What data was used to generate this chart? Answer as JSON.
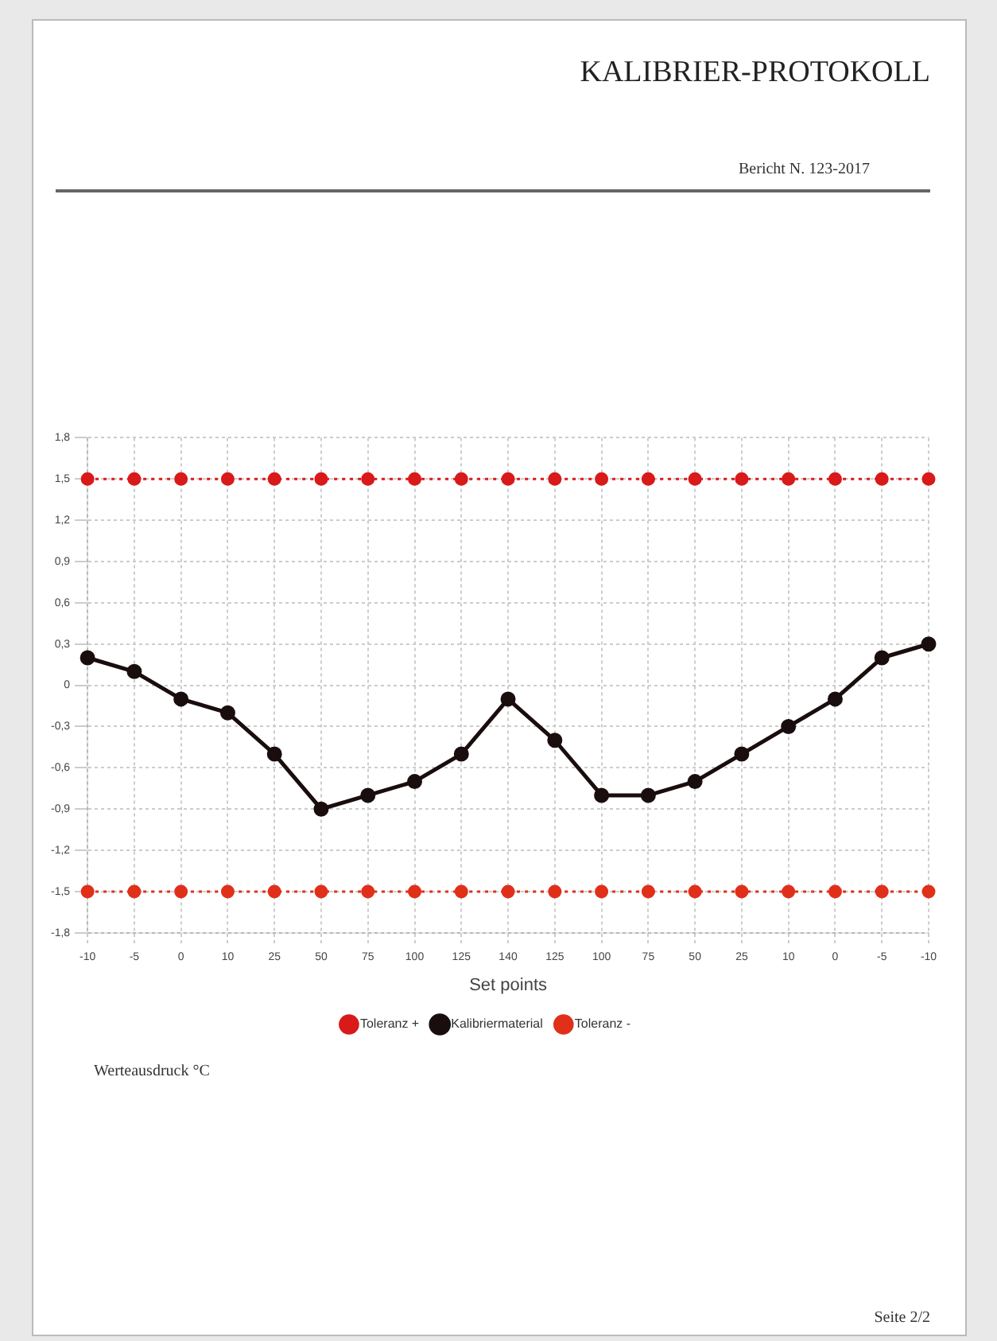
{
  "chart_data": {
    "type": "line",
    "title": "KALIBRIER-PROTOKOLL",
    "xlabel": "Set points",
    "annotations": [
      "Bericht N. 123-2017",
      "Werteausdruck °C",
      "Seite 2/2"
    ],
    "categories": [
      "-10",
      "-5",
      "0",
      "10",
      "25",
      "50",
      "75",
      "100",
      "125",
      "140",
      "125",
      "100",
      "75",
      "50",
      "25",
      "10",
      "0",
      "-5",
      "-10"
    ],
    "series": [
      {
        "name": "Toleranz +",
        "color": "#d91a1a",
        "line_style": "dotted",
        "values": [
          1.5,
          1.5,
          1.5,
          1.5,
          1.5,
          1.5,
          1.5,
          1.5,
          1.5,
          1.5,
          1.5,
          1.5,
          1.5,
          1.5,
          1.5,
          1.5,
          1.5,
          1.5,
          1.5
        ]
      },
      {
        "name": "Kalibriermaterial",
        "color": "#1a0d0d",
        "line_style": "solid",
        "values": [
          0.2,
          0.1,
          -0.1,
          -0.2,
          -0.5,
          -0.9,
          -0.8,
          -0.7,
          -0.5,
          -0.1,
          -0.4,
          -0.8,
          -0.8,
          -0.7,
          -0.5,
          -0.3,
          -0.1,
          0.2,
          0.3
        ]
      },
      {
        "name": "Toleranz -",
        "color": "#e0301a",
        "line_style": "dotted",
        "values": [
          -1.5,
          -1.5,
          -1.5,
          -1.5,
          -1.5,
          -1.5,
          -1.5,
          -1.5,
          -1.5,
          -1.5,
          -1.5,
          -1.5,
          -1.5,
          -1.5,
          -1.5,
          -1.5,
          -1.5,
          -1.5,
          -1.5
        ]
      }
    ],
    "ylim": [
      -1.8,
      1.8
    ],
    "yticks": [
      {
        "value": -1.8,
        "label": "-1,8"
      },
      {
        "value": -1.5,
        "label": "-1,5"
      },
      {
        "value": -1.2,
        "label": "-1,2"
      },
      {
        "value": -0.9,
        "label": "-0,9"
      },
      {
        "value": -0.6,
        "label": "-0,6"
      },
      {
        "value": -0.3,
        "label": "-0,3"
      },
      0,
      {
        "value": 0.3,
        "label": "0,3"
      },
      {
        "value": 0.6,
        "label": "0,6"
      },
      {
        "value": 0.9,
        "label": "0,9"
      },
      {
        "value": 1.2,
        "label": "1,2"
      },
      {
        "value": 1.5,
        "label": "1,5"
      },
      {
        "value": 1.8,
        "label": "1,8"
      }
    ],
    "grid": true,
    "legend": "bottom",
    "marker": "circle"
  }
}
